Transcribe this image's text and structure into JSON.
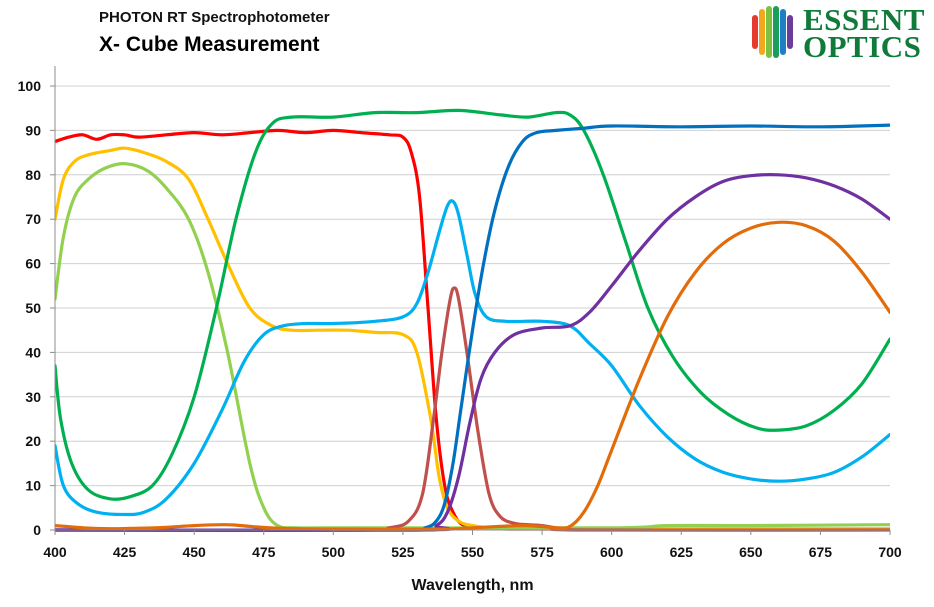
{
  "header": {
    "subtitle": "PHOTON RT Spectrophotometer",
    "title": "X- Cube Measurement"
  },
  "logo": {
    "line1": "ESSENT",
    "line2": "OPTICS",
    "stripe_colors": [
      "#e63a2e",
      "#f2a81d",
      "#7cc142",
      "#1a9e5a",
      "#1e7fc2",
      "#6a3d9a"
    ]
  },
  "chart_data": {
    "type": "line",
    "title": "X- Cube Measurement",
    "xlabel": "Wavelength, nm",
    "ylabel": "",
    "xlim": [
      400,
      700
    ],
    "ylim": [
      0,
      100
    ],
    "xticks": [
      400,
      425,
      450,
      475,
      500,
      525,
      550,
      575,
      600,
      625,
      650,
      675,
      700
    ],
    "yticks": [
      0,
      10,
      20,
      30,
      40,
      50,
      60,
      70,
      80,
      90,
      100
    ],
    "grid": "horizontal",
    "series": [
      {
        "name": "red",
        "color": "#ff0000",
        "points": [
          [
            400,
            87.5
          ],
          [
            405,
            88.5
          ],
          [
            410,
            89
          ],
          [
            415,
            88
          ],
          [
            420,
            89
          ],
          [
            425,
            89
          ],
          [
            430,
            88.5
          ],
          [
            440,
            89
          ],
          [
            450,
            89.5
          ],
          [
            460,
            89
          ],
          [
            470,
            89.5
          ],
          [
            480,
            90
          ],
          [
            490,
            89.5
          ],
          [
            500,
            90
          ],
          [
            510,
            89.5
          ],
          [
            520,
            89
          ],
          [
            525,
            88.5
          ],
          [
            528,
            85
          ],
          [
            531,
            75
          ],
          [
            534,
            50
          ],
          [
            537,
            25
          ],
          [
            540,
            10
          ],
          [
            543,
            4
          ],
          [
            547,
            1
          ],
          [
            555,
            0.3
          ],
          [
            600,
            0.2
          ],
          [
            700,
            0.2
          ]
        ]
      },
      {
        "name": "yellow",
        "color": "#ffc000",
        "points": [
          [
            400,
            70
          ],
          [
            403,
            79
          ],
          [
            407,
            83
          ],
          [
            412,
            84.5
          ],
          [
            420,
            85.5
          ],
          [
            425,
            86
          ],
          [
            432,
            85
          ],
          [
            440,
            83
          ],
          [
            448,
            79
          ],
          [
            455,
            70
          ],
          [
            462,
            60
          ],
          [
            470,
            50
          ],
          [
            478,
            46
          ],
          [
            485,
            45
          ],
          [
            495,
            45
          ],
          [
            505,
            45
          ],
          [
            515,
            44.5
          ],
          [
            525,
            44
          ],
          [
            530,
            40
          ],
          [
            535,
            25
          ],
          [
            538,
            12
          ],
          [
            541,
            5
          ],
          [
            545,
            2
          ],
          [
            550,
            1
          ],
          [
            560,
            0.5
          ],
          [
            600,
            0.3
          ],
          [
            700,
            0.3
          ]
        ]
      },
      {
        "name": "light-green",
        "color": "#92d050",
        "points": [
          [
            400,
            52
          ],
          [
            403,
            66
          ],
          [
            407,
            75
          ],
          [
            412,
            79
          ],
          [
            418,
            81.5
          ],
          [
            425,
            82.5
          ],
          [
            433,
            81
          ],
          [
            440,
            77
          ],
          [
            448,
            70
          ],
          [
            455,
            58
          ],
          [
            462,
            40
          ],
          [
            470,
            15
          ],
          [
            475,
            5
          ],
          [
            480,
            1
          ],
          [
            487,
            0.5
          ],
          [
            500,
            0.5
          ],
          [
            600,
            0.5
          ],
          [
            620,
            1
          ],
          [
            650,
            1
          ],
          [
            700,
            1.2
          ]
        ]
      },
      {
        "name": "green",
        "color": "#00b050",
        "points": [
          [
            400,
            37
          ],
          [
            402,
            25
          ],
          [
            406,
            15
          ],
          [
            412,
            9
          ],
          [
            420,
            7
          ],
          [
            427,
            7.5
          ],
          [
            435,
            10
          ],
          [
            442,
            17
          ],
          [
            450,
            30
          ],
          [
            458,
            50
          ],
          [
            465,
            70
          ],
          [
            472,
            85
          ],
          [
            478,
            91.5
          ],
          [
            485,
            93
          ],
          [
            500,
            93
          ],
          [
            515,
            94
          ],
          [
            530,
            94
          ],
          [
            545,
            94.5
          ],
          [
            560,
            93.5
          ],
          [
            570,
            93
          ],
          [
            580,
            94
          ],
          [
            585,
            93.5
          ],
          [
            590,
            90
          ],
          [
            597,
            80
          ],
          [
            605,
            65
          ],
          [
            613,
            50
          ],
          [
            622,
            39
          ],
          [
            632,
            31
          ],
          [
            642,
            26
          ],
          [
            652,
            23
          ],
          [
            660,
            22.5
          ],
          [
            670,
            23.5
          ],
          [
            680,
            27
          ],
          [
            690,
            33
          ],
          [
            700,
            43
          ]
        ]
      },
      {
        "name": "light-blue",
        "color": "#00b0f0",
        "points": [
          [
            400,
            19
          ],
          [
            403,
            10
          ],
          [
            408,
            6
          ],
          [
            415,
            4
          ],
          [
            425,
            3.5
          ],
          [
            432,
            4
          ],
          [
            440,
            7
          ],
          [
            450,
            15
          ],
          [
            460,
            27
          ],
          [
            468,
            38
          ],
          [
            475,
            44
          ],
          [
            482,
            46
          ],
          [
            490,
            46.5
          ],
          [
            500,
            46.5
          ],
          [
            515,
            47
          ],
          [
            525,
            48
          ],
          [
            530,
            51
          ],
          [
            534,
            58
          ],
          [
            538,
            67
          ],
          [
            541,
            73
          ],
          [
            543,
            74
          ],
          [
            545,
            71
          ],
          [
            548,
            62
          ],
          [
            551,
            53
          ],
          [
            555,
            48
          ],
          [
            562,
            47
          ],
          [
            575,
            47
          ],
          [
            585,
            46
          ],
          [
            592,
            42
          ],
          [
            600,
            37
          ],
          [
            610,
            28
          ],
          [
            620,
            21
          ],
          [
            630,
            16
          ],
          [
            640,
            13
          ],
          [
            650,
            11.5
          ],
          [
            660,
            11
          ],
          [
            670,
            11.5
          ],
          [
            680,
            13
          ],
          [
            690,
            16.5
          ],
          [
            700,
            21.5
          ]
        ]
      },
      {
        "name": "dark-red",
        "color": "#c0504d",
        "points": [
          [
            400,
            0
          ],
          [
            510,
            0
          ],
          [
            520,
            0.5
          ],
          [
            527,
            2
          ],
          [
            532,
            8
          ],
          [
            536,
            25
          ],
          [
            539,
            40
          ],
          [
            542,
            52
          ],
          [
            543.5,
            54.5
          ],
          [
            545,
            52
          ],
          [
            548,
            40
          ],
          [
            552,
            22
          ],
          [
            556,
            8
          ],
          [
            560,
            3
          ],
          [
            565,
            1.5
          ],
          [
            570,
            1.2
          ],
          [
            575,
            1
          ],
          [
            580,
            0.5
          ],
          [
            590,
            0
          ],
          [
            700,
            0
          ]
        ]
      },
      {
        "name": "blue",
        "color": "#0070c0",
        "points": [
          [
            400,
            0
          ],
          [
            525,
            0
          ],
          [
            533,
            0.5
          ],
          [
            537,
            2
          ],
          [
            540,
            6
          ],
          [
            543,
            15
          ],
          [
            546,
            28
          ],
          [
            550,
            45
          ],
          [
            554,
            60
          ],
          [
            558,
            72
          ],
          [
            563,
            82
          ],
          [
            568,
            87.5
          ],
          [
            573,
            89.5
          ],
          [
            580,
            90
          ],
          [
            590,
            90.5
          ],
          [
            600,
            91
          ],
          [
            625,
            90.8
          ],
          [
            650,
            91
          ],
          [
            675,
            90.8
          ],
          [
            700,
            91.2
          ]
        ]
      },
      {
        "name": "purple",
        "color": "#7030a0",
        "points": [
          [
            400,
            0
          ],
          [
            530,
            0
          ],
          [
            537,
            1
          ],
          [
            541,
            4
          ],
          [
            545,
            12
          ],
          [
            549,
            24
          ],
          [
            553,
            34
          ],
          [
            558,
            40
          ],
          [
            565,
            44
          ],
          [
            575,
            45.5
          ],
          [
            585,
            46
          ],
          [
            592,
            49
          ],
          [
            600,
            55
          ],
          [
            610,
            63
          ],
          [
            620,
            70
          ],
          [
            630,
            75
          ],
          [
            640,
            78.5
          ],
          [
            650,
            79.8
          ],
          [
            660,
            80
          ],
          [
            670,
            79.3
          ],
          [
            680,
            77.5
          ],
          [
            690,
            74.5
          ],
          [
            700,
            70
          ]
        ]
      },
      {
        "name": "orange",
        "color": "#e36c0a",
        "points": [
          [
            400,
            1
          ],
          [
            410,
            0.5
          ],
          [
            420,
            0.3
          ],
          [
            430,
            0.4
          ],
          [
            440,
            0.6
          ],
          [
            450,
            1
          ],
          [
            460,
            1.2
          ],
          [
            465,
            1.1
          ],
          [
            470,
            0.8
          ],
          [
            480,
            0.4
          ],
          [
            500,
            0.2
          ],
          [
            540,
            0.2
          ],
          [
            550,
            0.5
          ],
          [
            560,
            0.8
          ],
          [
            570,
            1
          ],
          [
            580,
            0.5
          ],
          [
            585,
            0.8
          ],
          [
            590,
            4
          ],
          [
            595,
            10
          ],
          [
            600,
            18
          ],
          [
            610,
            34
          ],
          [
            620,
            48
          ],
          [
            630,
            58
          ],
          [
            640,
            64.5
          ],
          [
            650,
            68
          ],
          [
            660,
            69.3
          ],
          [
            670,
            68.5
          ],
          [
            680,
            65
          ],
          [
            690,
            58
          ],
          [
            700,
            49
          ]
        ]
      }
    ]
  }
}
